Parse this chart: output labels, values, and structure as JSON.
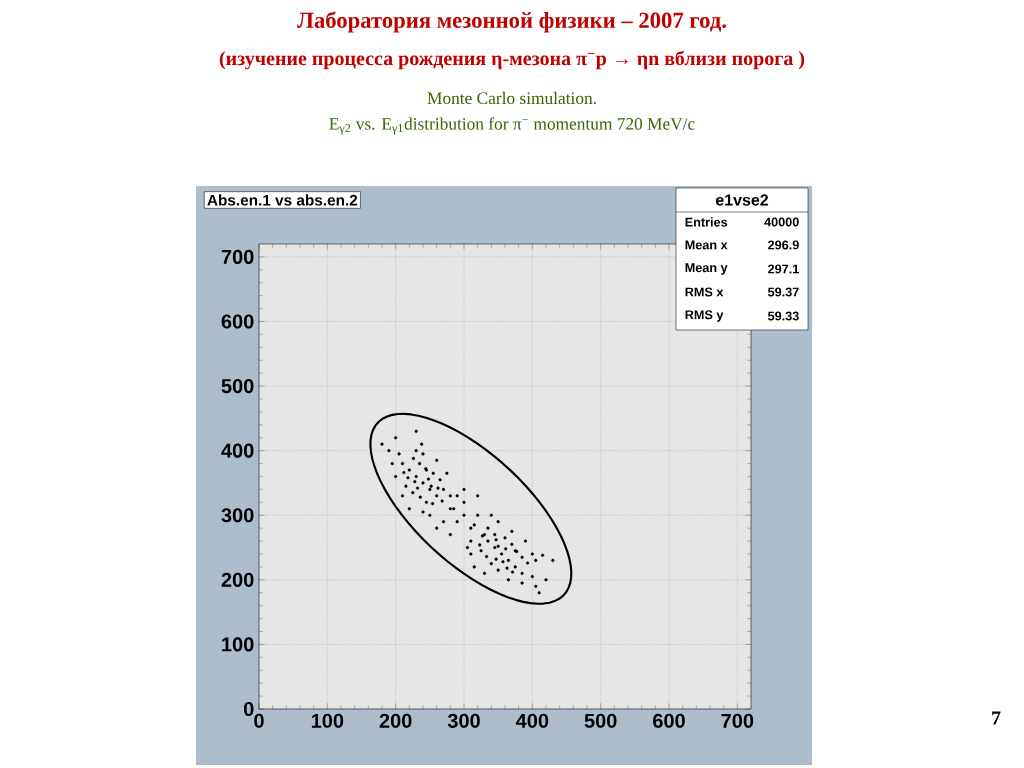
{
  "chart_data": {
    "type": "scatter",
    "title": "Лаборатория мезонной физики – 2007 год.",
    "subtitle": "(изучение  процесса  рождения  η-мезона  π$^{−}$p → ηn  вблизи  порога )",
    "annotations": [
      "Monte Carlo simulation.",
      "E$_{γ2}$ vs. E$_{γ1}$distribution for π$^{−}$ momentum 720 MeV/c",
      "Abs.en.1 vs abs.en.2",
      "e1vse2",
      "Entries",
      "40000",
      "Mean x",
      "296.9",
      "Mean y",
      "297.1",
      "RMS x",
      "59.37",
      "RMS y",
      "59.33",
      "7"
    ],
    "xlim": [
      0,
      720
    ],
    "ylim": [
      0,
      720
    ],
    "xticks": [
      0,
      100,
      200,
      300,
      400,
      500,
      600,
      700
    ],
    "yticks": [
      0,
      100,
      200,
      300,
      400,
      500,
      600,
      700
    ],
    "grid": true,
    "series": [
      {
        "type": "scatter",
        "marker": "circle",
        "color": "#000000",
        "x": [
          240,
          230,
          250,
          220,
          260,
          235,
          245,
          215,
          265,
          225,
          255,
          210,
          270,
          240,
          240,
          200,
          280,
          230,
          250,
          205,
          275,
          220,
          260,
          195,
          285,
          245,
          232,
          248,
          228,
          252,
          236,
          244,
          218,
          262,
          226,
          254,
          212,
          268,
          238,
          190,
          355,
          365,
          345,
          375,
          335,
          385,
          325,
          350,
          360,
          340,
          370,
          385,
          345,
          400,
          310,
          365,
          335,
          405,
          305,
          400,
          370,
          315,
          390,
          385,
          315,
          375,
          347,
          361,
          357,
          350,
          333,
          377,
          363,
          347,
          393,
          323,
          371,
          327,
          415,
          405,
          300,
          290,
          310,
          280,
          320,
          300,
          270,
          330,
          290,
          310,
          260,
          340,
          300,
          280,
          350,
          320,
          200,
          420,
          230,
          430,
          180,
          410,
          330,
          210
        ],
        "values": [
          350,
          360,
          340,
          370,
          330,
          380,
          320,
          345,
          355,
          335,
          365,
          380,
          340,
          395,
          305,
          360,
          330,
          400,
          300,
          395,
          365,
          310,
          385,
          380,
          310,
          370,
          342,
          356,
          352,
          345,
          328,
          372,
          358,
          342,
          388,
          318,
          366,
          322,
          410,
          400,
          240,
          230,
          250,
          220,
          260,
          235,
          245,
          215,
          265,
          225,
          255,
          210,
          270,
          240,
          240,
          200,
          280,
          230,
          250,
          205,
          275,
          220,
          260,
          195,
          285,
          245,
          232,
          248,
          228,
          252,
          236,
          244,
          218,
          262,
          226,
          254,
          212,
          268,
          238,
          190,
          300,
          290,
          280,
          310,
          300,
          320,
          290,
          270,
          330,
          260,
          280,
          300,
          340,
          270,
          290,
          330,
          420,
          200,
          430,
          230,
          410,
          180,
          210,
          330
        ]
      }
    ]
  }
}
